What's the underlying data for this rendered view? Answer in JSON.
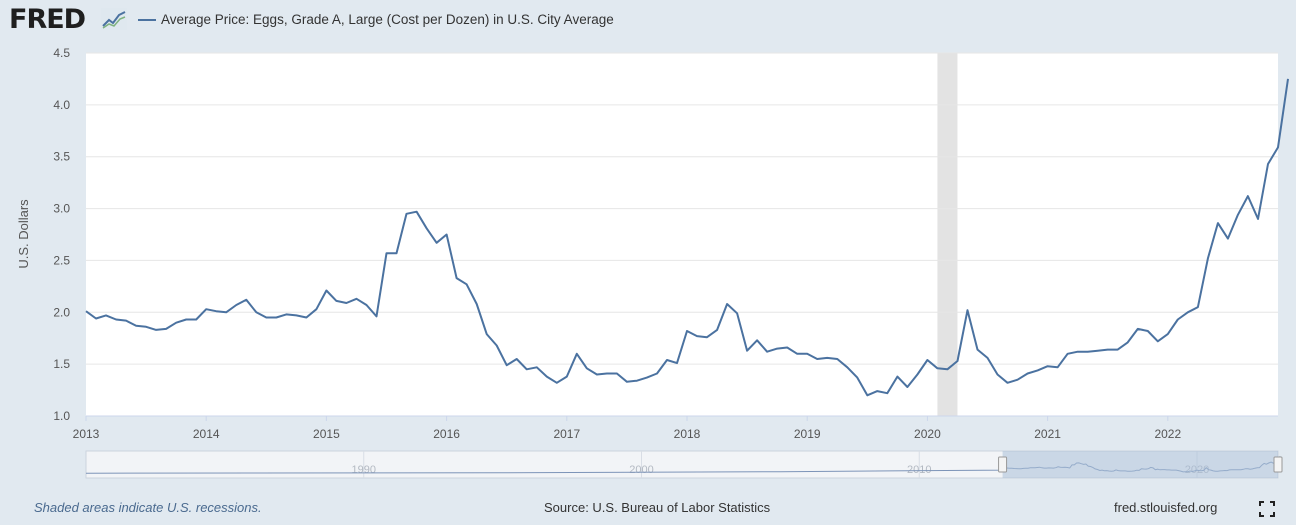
{
  "header": {
    "logo": "FRED",
    "legend_label": "Average Price: Eggs, Grade A, Large (Cost per Dozen) in U.S. City Average"
  },
  "footer": {
    "recession_note": "Shaded areas indicate U.S. recessions.",
    "source": "Source: U.S. Bureau of Labor Statistics",
    "site": "fred.stlouisfed.org"
  },
  "navigator": {
    "year_labels": [
      "1990",
      "2000",
      "2010",
      "2020"
    ],
    "selected_range": [
      "2013-01",
      "2022-12"
    ]
  },
  "colors": {
    "series": "#4b72a0",
    "background": "#e1e9f0",
    "recession": "#e3e3e3",
    "navigator_fill": "#a9bfd9"
  },
  "chart_data": {
    "type": "line",
    "title": "Average Price: Eggs, Grade A, Large (Cost per Dozen) in U.S. City Average",
    "ylabel": "U.S. Dollars",
    "xlabel": "",
    "ylim": [
      1.0,
      4.5
    ],
    "yticks": [
      "1.0",
      "1.5",
      "2.0",
      "2.5",
      "3.0",
      "3.5",
      "4.0",
      "4.5"
    ],
    "xticks": [
      "2013",
      "2014",
      "2015",
      "2016",
      "2017",
      "2018",
      "2019",
      "2020",
      "2021",
      "2022"
    ],
    "xlim": [
      "2013-01",
      "2022-12"
    ],
    "grid": true,
    "recessions": [
      [
        "2020-02",
        "2020-04"
      ]
    ],
    "series": [
      {
        "name": "Average Price: Eggs, Grade A, Large (Cost per Dozen) in U.S. City Average",
        "start": "2013-01",
        "frequency": "monthly",
        "values": [
          2.01,
          1.94,
          1.97,
          1.93,
          1.92,
          1.87,
          1.86,
          1.83,
          1.84,
          1.9,
          1.93,
          1.93,
          2.03,
          2.01,
          2.0,
          2.07,
          2.12,
          2.0,
          1.95,
          1.95,
          1.98,
          1.97,
          1.95,
          2.03,
          2.21,
          2.11,
          2.09,
          2.13,
          2.07,
          1.96,
          2.57,
          2.57,
          2.95,
          2.97,
          2.81,
          2.67,
          2.75,
          2.33,
          2.27,
          2.08,
          1.79,
          1.68,
          1.49,
          1.55,
          1.45,
          1.47,
          1.38,
          1.32,
          1.38,
          1.6,
          1.46,
          1.4,
          1.41,
          1.41,
          1.33,
          1.34,
          1.37,
          1.41,
          1.54,
          1.51,
          1.82,
          1.77,
          1.76,
          1.83,
          2.08,
          1.99,
          1.63,
          1.73,
          1.62,
          1.65,
          1.66,
          1.6,
          1.6,
          1.55,
          1.56,
          1.55,
          1.47,
          1.37,
          1.2,
          1.24,
          1.22,
          1.38,
          1.28,
          1.4,
          1.54,
          1.46,
          1.45,
          1.53,
          2.02,
          1.64,
          1.56,
          1.4,
          1.32,
          1.35,
          1.41,
          1.44,
          1.48,
          1.47,
          1.6,
          1.62,
          1.62,
          1.63,
          1.64,
          1.64,
          1.71,
          1.84,
          1.82,
          1.72,
          1.79,
          1.93,
          2.0,
          2.05,
          2.52,
          2.86,
          2.71,
          2.94,
          3.12,
          2.9,
          3.43,
          3.59,
          4.25
        ]
      }
    ]
  }
}
